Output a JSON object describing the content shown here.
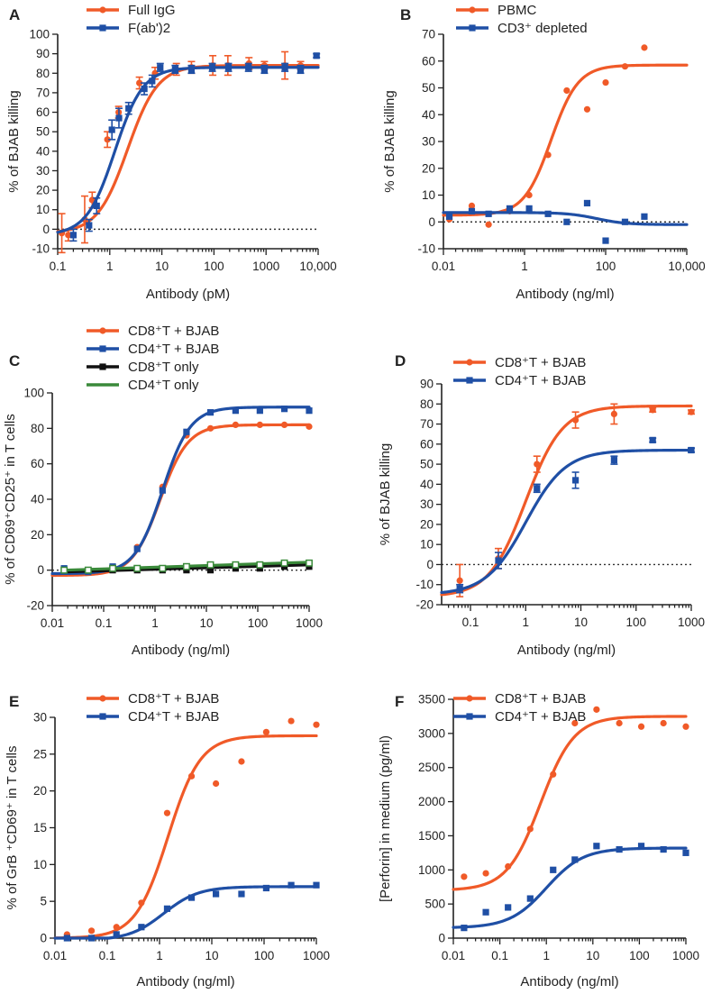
{
  "chart_data": [
    {
      "panel": "A",
      "type": "scatter",
      "xscale": "log",
      "xlim": [
        0.1,
        10000
      ],
      "ylim": [
        -10,
        100
      ],
      "xticks": [
        0.1,
        1,
        10,
        100,
        1000,
        10000
      ],
      "xticklabels": [
        "0.1",
        "1",
        "10",
        "100",
        "1000",
        "10,000"
      ],
      "yticks": [
        -10,
        0,
        10,
        20,
        30,
        40,
        50,
        60,
        70,
        80,
        90,
        100
      ],
      "yticklabels": [
        "-10",
        "0",
        "10",
        "20",
        "30",
        "40",
        "50",
        "60",
        "70",
        "80",
        "90",
        "100"
      ],
      "xlabel": "Antibody (pM)",
      "ylabel": "% of BJAB killing",
      "zero_line": true,
      "legend_position": "top-left",
      "series": [
        {
          "name": "Full IgG",
          "color": "#f05a28",
          "marker": "circle",
          "x": [
            0.12,
            0.16,
            0.33,
            0.46,
            0.9,
            1.48,
            3.7,
            7.4,
            19,
            37,
            95,
            185,
            470,
            930,
            2300,
            4600
          ],
          "y": [
            -2,
            -3,
            5,
            15,
            46,
            60,
            75,
            80,
            82,
            83,
            84,
            84,
            85,
            84,
            84,
            84
          ],
          "err": [
            10,
            3,
            12,
            4,
            4,
            3,
            3,
            3,
            3,
            3,
            5,
            5,
            3,
            2,
            7,
            2
          ],
          "fit": {
            "bottom": -2,
            "top": 84,
            "ec50": 2.2,
            "hill": 1.5
          }
        },
        {
          "name": "F(ab')2",
          "color": "#1f4fa5",
          "marker": "square",
          "x": [
            0.2,
            0.4,
            0.56,
            1.1,
            1.5,
            2.3,
            4.6,
            6.5,
            9.3,
            18,
            37,
            93,
            190,
            460,
            930,
            2300,
            4600,
            9300
          ],
          "y": [
            -3,
            2,
            12,
            51,
            57,
            62,
            72,
            76,
            83,
            82,
            82,
            83,
            83,
            83,
            82,
            83,
            82,
            89
          ],
          "err": [
            3,
            3,
            4,
            5,
            5,
            3,
            3,
            3,
            2,
            2,
            2,
            2,
            2,
            2,
            2,
            2,
            2,
            1
          ],
          "fit": {
            "bottom": -3,
            "top": 83,
            "ec50": 1.25,
            "hill": 1.6
          }
        }
      ]
    },
    {
      "panel": "B",
      "type": "scatter",
      "xscale": "log",
      "xlim": [
        0.01,
        10000
      ],
      "ylim": [
        -10,
        70
      ],
      "xticks": [
        0.01,
        1,
        100,
        10000
      ],
      "xticklabels": [
        "0.01",
        "1",
        "100",
        "10,000"
      ],
      "yticks": [
        -10,
        0,
        10,
        20,
        30,
        40,
        50,
        60,
        70
      ],
      "yticklabels": [
        "-10",
        "0",
        "10",
        "20",
        "30",
        "40",
        "50",
        "60",
        "70"
      ],
      "xlabel": "Antibody (ng/ml)",
      "ylabel": "% of BJAB killing",
      "zero_line": true,
      "legend_position": "top-center",
      "series": [
        {
          "name": "PBMC",
          "color": "#f05a28",
          "marker": "circle",
          "x": [
            0.014,
            0.05,
            0.13,
            0.43,
            1.3,
            3.8,
            11,
            35,
            100,
            300,
            900
          ],
          "y": [
            1,
            6,
            -1,
            4,
            10,
            25,
            49,
            42,
            52,
            58,
            65
          ],
          "fit": {
            "bottom": 2.5,
            "top": 58.5,
            "ec50": 4.5,
            "hill": 1.3
          }
        },
        {
          "name": "CD3⁺ depleted",
          "color": "#1f4fa5",
          "marker": "square",
          "x": [
            0.014,
            0.05,
            0.13,
            0.43,
            1.3,
            3.8,
            11,
            35,
            100,
            300,
            900
          ],
          "y": [
            2,
            4,
            3,
            5,
            5,
            3,
            0,
            7,
            -7,
            0,
            2
          ],
          "fit": {
            "bottom": 3.5,
            "top": -1,
            "ec50": 60,
            "hill": 1.2
          }
        }
      ]
    },
    {
      "panel": "C",
      "type": "scatter",
      "xscale": "log",
      "xlim": [
        0.01,
        1000
      ],
      "ylim": [
        -20,
        100
      ],
      "xticks": [
        0.01,
        0.1,
        1,
        10,
        100,
        1000
      ],
      "xticklabels": [
        "0.01",
        "0.1",
        "1",
        "10",
        "100",
        "1000"
      ],
      "yticks": [
        -20,
        0,
        20,
        40,
        60,
        80,
        100
      ],
      "yticklabels": [
        "-20",
        "0",
        "20",
        "40",
        "60",
        "80",
        "100"
      ],
      "xlabel": "Antibody (ng/ml)",
      "ylabel": "% of CD69⁺CD25⁺ in T cells",
      "zero_line": true,
      "legend_position": "top-left",
      "series": [
        {
          "name": "CD8⁺T + BJAB",
          "color": "#f05a28",
          "marker": "circle",
          "x": [
            0.017,
            0.05,
            0.15,
            0.45,
            1.4,
            4.1,
            12,
            37,
            110,
            330,
            1000
          ],
          "y": [
            0,
            0,
            1,
            13,
            47,
            76,
            80,
            82,
            82,
            82,
            81
          ],
          "fit": {
            "bottom": -3,
            "top": 82,
            "ec50": 1.25,
            "hill": 1.6
          }
        },
        {
          "name": "CD4⁺T + BJAB",
          "color": "#1f4fa5",
          "marker": "square",
          "x": [
            0.017,
            0.05,
            0.15,
            0.45,
            1.4,
            4.1,
            12,
            37,
            110,
            330,
            1000
          ],
          "y": [
            1,
            -1,
            2,
            12,
            45,
            78,
            89,
            90,
            90,
            91,
            90
          ],
          "fit": {
            "bottom": -2,
            "top": 92,
            "ec50": 1.4,
            "hill": 1.6
          }
        },
        {
          "name": "CD8⁺T only",
          "color": "#111111",
          "marker": "square",
          "x": [
            0.017,
            0.05,
            0.15,
            0.45,
            1.4,
            4.1,
            12,
            37,
            110,
            330,
            1000
          ],
          "y": [
            0,
            0,
            0,
            0,
            0,
            0,
            0,
            1,
            1,
            2,
            2
          ],
          "linear": {
            "y0": -1,
            "y1": 3
          }
        },
        {
          "name": "CD4⁺T only",
          "color": "#3a8a3a",
          "marker": "open-square",
          "x": [
            0.017,
            0.05,
            0.15,
            0.45,
            1.4,
            4.1,
            12,
            37,
            110,
            330,
            1000
          ],
          "y": [
            0,
            0,
            1,
            1,
            1,
            2,
            3,
            3,
            3,
            4,
            4
          ],
          "linear": {
            "y0": 0,
            "y1": 4.5
          }
        }
      ]
    },
    {
      "panel": "D",
      "type": "scatter",
      "xscale": "log",
      "xlim": [
        0.03,
        1000
      ],
      "ylim": [
        -20,
        90
      ],
      "xticks": [
        0.1,
        1,
        10,
        100,
        1000
      ],
      "xticklabels": [
        "0.1",
        "1",
        "10",
        "100",
        "1000"
      ],
      "yticks": [
        -20,
        -10,
        0,
        10,
        20,
        30,
        40,
        50,
        60,
        70,
        80,
        90
      ],
      "yticklabels": [
        "-20",
        "-10",
        "0",
        "10",
        "20",
        "30",
        "40",
        "50",
        "60",
        "70",
        "80",
        "90"
      ],
      "xlabel": "Antibody (ng/ml)",
      "ylabel": "% of BJAB killing",
      "zero_line": true,
      "legend_position": "top-center",
      "series": [
        {
          "name": "CD8⁺T + BJAB",
          "color": "#f05a28",
          "marker": "circle",
          "x": [
            0.064,
            0.32,
            1.6,
            8,
            40,
            200,
            1000
          ],
          "y": [
            -8,
            3,
            50,
            72,
            75,
            77,
            76
          ],
          "err": [
            8,
            5,
            4,
            4,
            5,
            1,
            1
          ],
          "fit": {
            "bottom": -16,
            "top": 79,
            "ec50": 1.0,
            "hill": 1.3
          }
        },
        {
          "name": "CD4⁺T + BJAB",
          "color": "#1f4fa5",
          "marker": "square",
          "x": [
            0.064,
            0.32,
            1.6,
            8,
            40,
            200,
            1000
          ],
          "y": [
            -12,
            2,
            38,
            42,
            52,
            62,
            57
          ],
          "err": [
            2,
            4,
            2,
            4,
            2,
            1,
            1
          ],
          "fit": {
            "bottom": -15,
            "top": 57,
            "ec50": 1.0,
            "hill": 1.2
          }
        }
      ]
    },
    {
      "panel": "E",
      "type": "scatter",
      "xscale": "log",
      "xlim": [
        0.01,
        1000
      ],
      "ylim": [
        0,
        30
      ],
      "xticks": [
        0.01,
        0.1,
        1,
        10,
        100,
        1000
      ],
      "xticklabels": [
        "0.01",
        "0.1",
        "1",
        "10",
        "100",
        "1000"
      ],
      "yticks": [
        0,
        5,
        10,
        15,
        20,
        25,
        30
      ],
      "yticklabels": [
        "0",
        "5",
        "10",
        "15",
        "20",
        "25",
        "30"
      ],
      "xlabel": "Antibody (ng/ml)",
      "ylabel": "% of GrB ⁺CD69⁺ in T cells",
      "zero_line": false,
      "legend_position": "top-center",
      "series": [
        {
          "name": "CD8⁺T + BJAB",
          "color": "#f05a28",
          "marker": "circle",
          "x": [
            0.017,
            0.05,
            0.15,
            0.45,
            1.4,
            4.1,
            12,
            37,
            110,
            330,
            1000
          ],
          "y": [
            0.5,
            1,
            1.5,
            4.8,
            17,
            22,
            21,
            24,
            28,
            29.5,
            29
          ],
          "fit": {
            "bottom": 0,
            "top": 27.5,
            "ec50": 1.45,
            "hill": 1.4
          }
        },
        {
          "name": "CD4⁺T + BJAB",
          "color": "#1f4fa5",
          "marker": "square",
          "x": [
            0.017,
            0.05,
            0.15,
            0.45,
            1.4,
            4.1,
            12,
            37,
            110,
            330,
            1000
          ],
          "y": [
            0,
            0,
            0.5,
            1.5,
            4,
            5.5,
            6,
            6,
            6.8,
            7.2,
            7.2
          ],
          "fit": {
            "bottom": -0.3,
            "top": 7,
            "ec50": 1.2,
            "hill": 1.3
          }
        }
      ]
    },
    {
      "panel": "F",
      "type": "scatter",
      "xscale": "log",
      "xlim": [
        0.01,
        1000
      ],
      "ylim": [
        0,
        3500
      ],
      "xticks": [
        0.01,
        0.1,
        1,
        10,
        100,
        1000
      ],
      "xticklabels": [
        "0.01",
        "0.1",
        "1",
        "10",
        "100",
        "1000"
      ],
      "yticks": [
        0,
        500,
        1000,
        1500,
        2000,
        2500,
        3000,
        3500
      ],
      "yticklabels": [
        "0",
        "500",
        "1000",
        "1500",
        "2000",
        "2500",
        "3000",
        "3500"
      ],
      "xlabel": "Antibody (ng/ml)",
      "ylabel": "[Perforin] in medium (pg/ml)",
      "zero_line": false,
      "legend_position": "top-center",
      "series": [
        {
          "name": "CD8⁺T + BJAB",
          "color": "#f05a28",
          "marker": "circle",
          "x": [
            0.017,
            0.05,
            0.15,
            0.45,
            1.4,
            4.1,
            12,
            37,
            110,
            330,
            1000
          ],
          "y": [
            900,
            950,
            1050,
            1600,
            2400,
            3150,
            3350,
            3150,
            3100,
            3150,
            3100
          ],
          "fit": {
            "bottom": 700,
            "top": 3250,
            "ec50": 0.75,
            "hill": 1.2
          }
        },
        {
          "name": "CD4⁺T + BJAB",
          "color": "#1f4fa5",
          "marker": "square",
          "x": [
            0.017,
            0.05,
            0.15,
            0.45,
            1.4,
            4.1,
            12,
            37,
            110,
            330,
            1000
          ],
          "y": [
            150,
            380,
            450,
            580,
            1000,
            1150,
            1350,
            1300,
            1350,
            1300,
            1250
          ],
          "fit": {
            "bottom": 150,
            "top": 1320,
            "ec50": 1.0,
            "hill": 1.1
          }
        }
      ]
    }
  ]
}
